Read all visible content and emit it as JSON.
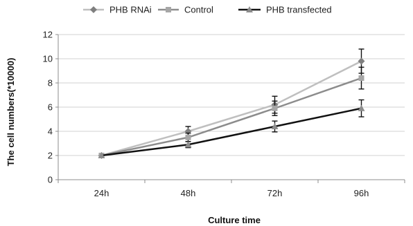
{
  "chart_data": {
    "type": "line",
    "title": "",
    "xlabel": "Culture time",
    "ylabel": "The cell numbers(*10000)",
    "categories": [
      "24h",
      "48h",
      "72h",
      "96h"
    ],
    "ylim": [
      0,
      12
    ],
    "yticks": [
      "0",
      "2",
      "4",
      "6",
      "8",
      "10",
      "12"
    ],
    "grid": "horizontal",
    "legend_position": "top",
    "series": [
      {
        "name": "PHB RNAi",
        "values": [
          2.0,
          4.0,
          6.2,
          9.8
        ],
        "errors": [
          0.0,
          0.4,
          0.7,
          1.0
        ],
        "color": "#bfbfbf",
        "marker": "diamond",
        "marker_color": "#7f7f7f"
      },
      {
        "name": "Control",
        "values": [
          2.0,
          3.5,
          5.9,
          8.4
        ],
        "errors": [
          0.0,
          0.35,
          0.6,
          0.9
        ],
        "color": "#8c8c8c",
        "marker": "square",
        "marker_color": "#a6a6a6"
      },
      {
        "name": "PHB transfected",
        "values": [
          2.0,
          2.9,
          4.4,
          5.9
        ],
        "errors": [
          0.0,
          0.25,
          0.45,
          0.7
        ],
        "color": "#111111",
        "marker": "triangle",
        "marker_color": "#8c8c8c"
      }
    ]
  }
}
